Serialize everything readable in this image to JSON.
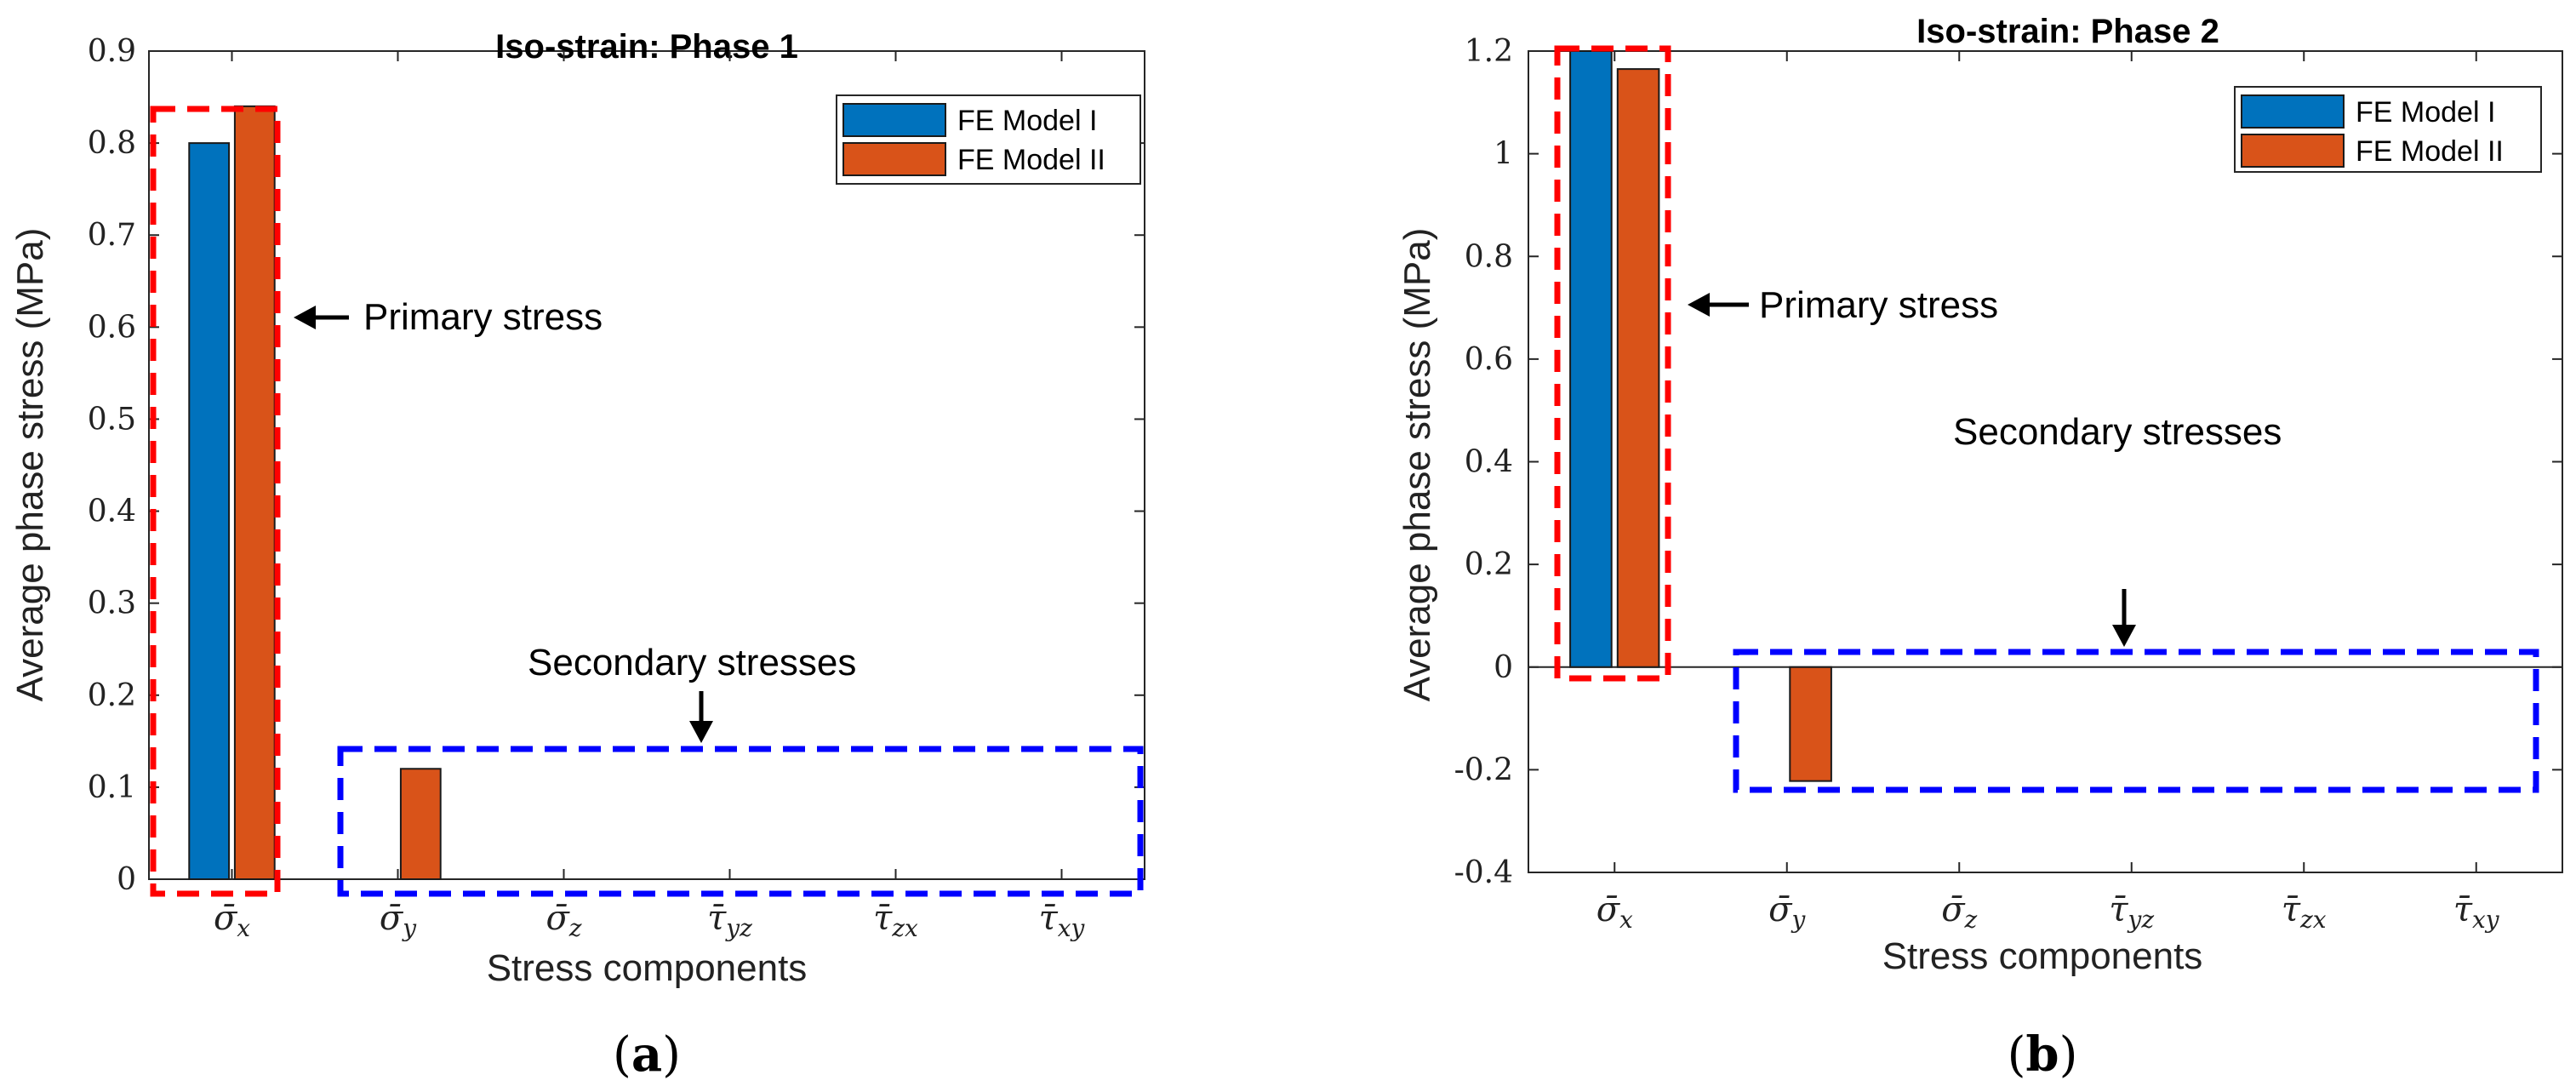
{
  "panels": [
    {
      "tag_open": "(",
      "tag_letter": "a",
      "tag_close": ")",
      "primary_annotation": "Primary stress",
      "secondary_annotation": "Secondary stresses"
    },
    {
      "tag_open": "(",
      "tag_letter": "b",
      "tag_close": ")",
      "primary_annotation": "Primary stress",
      "secondary_annotation": "Secondary stresses"
    }
  ],
  "colors": {
    "model1": "#0072BD",
    "model2": "#D95319",
    "primary_box": "#FF0000",
    "secondary_box": "#0000FF"
  },
  "chart_data": [
    {
      "type": "bar",
      "title": "Iso-strain: Phase 1",
      "xlabel": "Stress components",
      "ylabel": "Average phase stress (MPa)",
      "categories": [
        "σ̄x",
        "σ̄y",
        "σ̄z",
        "τ̄yz",
        "τ̄zx",
        "τ̄xy"
      ],
      "category_parts": [
        [
          "σ̄",
          "x"
        ],
        [
          "σ̄",
          "y"
        ],
        [
          "σ̄",
          "z"
        ],
        [
          "τ̄",
          "yz"
        ],
        [
          "τ̄",
          "zx"
        ],
        [
          "τ̄",
          "xy"
        ]
      ],
      "ylim": [
        0,
        0.9
      ],
      "yticks": [
        "0",
        "0.1",
        "0.2",
        "0.3",
        "0.4",
        "0.5",
        "0.6",
        "0.7",
        "0.8",
        "0.9"
      ],
      "yticks_values": [
        0,
        0.1,
        0.2,
        0.3,
        0.4,
        0.5,
        0.6,
        0.7,
        0.8,
        0.9
      ],
      "series": [
        {
          "name": "FE Model I",
          "values": [
            0.8,
            0,
            0,
            0,
            0,
            0
          ]
        },
        {
          "name": "FE Model II",
          "values": [
            0.84,
            0.12,
            0,
            0,
            0,
            0
          ]
        }
      ],
      "legend": "top-right"
    },
    {
      "type": "bar",
      "title": "Iso-strain: Phase 2",
      "xlabel": "Stress components",
      "ylabel": "Average phase stress (MPa)",
      "categories": [
        "σ̄x",
        "σ̄y",
        "σ̄z",
        "τ̄yz",
        "τ̄zx",
        "τ̄xy"
      ],
      "category_parts": [
        [
          "σ̄",
          "x"
        ],
        [
          "σ̄",
          "y"
        ],
        [
          "σ̄",
          "z"
        ],
        [
          "τ̄",
          "yz"
        ],
        [
          "τ̄",
          "zx"
        ],
        [
          "τ̄",
          "xy"
        ]
      ],
      "ylim": [
        -0.4,
        1.2
      ],
      "yticks": [
        "-0.4",
        "-0.2",
        "0",
        "0.2",
        "0.4",
        "0.6",
        "0.8",
        "1",
        "1.2"
      ],
      "yticks_values": [
        -0.4,
        -0.2,
        0,
        0.2,
        0.4,
        0.6,
        0.8,
        1,
        1.2
      ],
      "series": [
        {
          "name": "FE Model I",
          "values": [
            1.2,
            0,
            0,
            0,
            0,
            0
          ]
        },
        {
          "name": "FE Model II",
          "values": [
            1.165,
            -0.222,
            0,
            0,
            0,
            0
          ]
        }
      ],
      "legend": "top-right"
    }
  ]
}
